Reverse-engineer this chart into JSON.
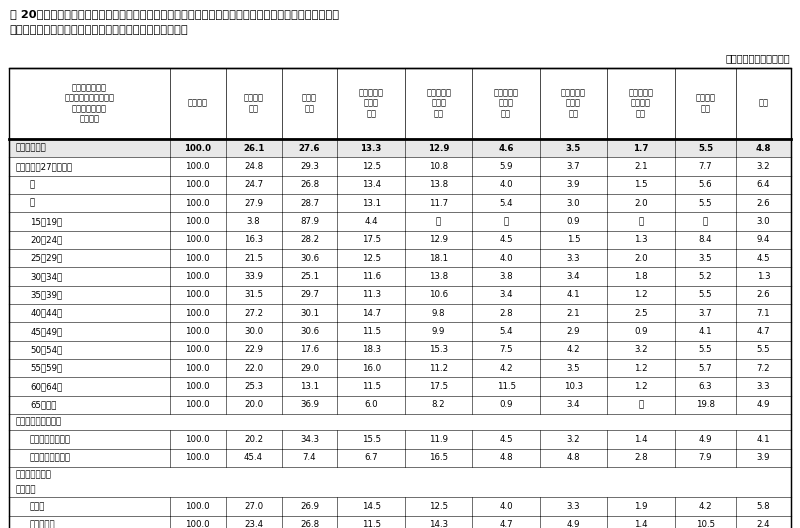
{
  "title_line1": "表 20　性・年齢階級・転職活動期間の有無・現在の勤め先の就業形態、直前の勤め先を離職してから現",
  "title_line2": "　　　在の勤め先に就職するまでの期間階級別転職者割合",
  "unit_label": "（単位：％）　令和２年",
  "col_headers": [
    "性・年齢階級・\n転職活動期間の有無・\n現在の勤め先の\n就業形態",
    "転職者計",
    "離職期間\nなし",
    "１か月\n未満",
    "１か月以上\n２か月\n未満",
    "２か月以上\n４か月\n未満",
    "４か月以上\n６か月\n未満",
    "６か月以上\n８か月\n未満",
    "８か月以上\n１０か月\n未満",
    "１０か月\n以上",
    "不明"
  ],
  "rows": [
    {
      "label": "総　　　　数",
      "bold": true,
      "indent": 0,
      "values": [
        "100.0",
        "26.1",
        "27.6",
        "13.3",
        "12.9",
        "4.6",
        "3.5",
        "1.7",
        "5.5",
        "4.8"
      ]
    },
    {
      "label": "前回（平成27年）総数",
      "bold": false,
      "indent": 0,
      "values": [
        "100.0",
        "24.8",
        "29.3",
        "12.5",
        "10.8",
        "5.9",
        "3.7",
        "2.1",
        "7.7",
        "3.2"
      ]
    },
    {
      "label": "男",
      "bold": false,
      "indent": 1,
      "values": [
        "100.0",
        "24.7",
        "26.8",
        "13.4",
        "13.8",
        "4.0",
        "3.9",
        "1.5",
        "5.6",
        "6.4"
      ]
    },
    {
      "label": "女",
      "bold": false,
      "indent": 1,
      "values": [
        "100.0",
        "27.9",
        "28.7",
        "13.1",
        "11.7",
        "5.4",
        "3.0",
        "2.0",
        "5.5",
        "2.6"
      ]
    },
    {
      "label": "15～19歳",
      "bold": false,
      "indent": 1,
      "values": [
        "100.0",
        "3.8",
        "87.9",
        "4.4",
        "－",
        "－",
        "0.9",
        "－",
        "－",
        "3.0"
      ]
    },
    {
      "label": "20～24歳",
      "bold": false,
      "indent": 1,
      "values": [
        "100.0",
        "16.3",
        "28.2",
        "17.5",
        "12.9",
        "4.5",
        "1.5",
        "1.3",
        "8.4",
        "9.4"
      ]
    },
    {
      "label": "25～29歳",
      "bold": false,
      "indent": 1,
      "values": [
        "100.0",
        "21.5",
        "30.6",
        "12.5",
        "18.1",
        "4.0",
        "3.3",
        "2.0",
        "3.5",
        "4.5"
      ]
    },
    {
      "label": "30～34歳",
      "bold": false,
      "indent": 1,
      "values": [
        "100.0",
        "33.9",
        "25.1",
        "11.6",
        "13.8",
        "3.8",
        "3.4",
        "1.8",
        "5.2",
        "1.3"
      ]
    },
    {
      "label": "35～39歳",
      "bold": false,
      "indent": 1,
      "values": [
        "100.0",
        "31.5",
        "29.7",
        "11.3",
        "10.6",
        "3.4",
        "4.1",
        "1.2",
        "5.5",
        "2.6"
      ]
    },
    {
      "label": "40～44歳",
      "bold": false,
      "indent": 1,
      "values": [
        "100.0",
        "27.2",
        "30.1",
        "14.7",
        "9.8",
        "2.8",
        "2.1",
        "2.5",
        "3.7",
        "7.1"
      ]
    },
    {
      "label": "45～49歳",
      "bold": false,
      "indent": 1,
      "values": [
        "100.0",
        "30.0",
        "30.6",
        "11.5",
        "9.9",
        "5.4",
        "2.9",
        "0.9",
        "4.1",
        "4.7"
      ]
    },
    {
      "label": "50～54歳",
      "bold": false,
      "indent": 1,
      "values": [
        "100.0",
        "22.9",
        "17.6",
        "18.3",
        "15.3",
        "7.5",
        "4.2",
        "3.2",
        "5.5",
        "5.5"
      ]
    },
    {
      "label": "55～59歳",
      "bold": false,
      "indent": 1,
      "values": [
        "100.0",
        "22.0",
        "29.0",
        "16.0",
        "11.2",
        "4.2",
        "3.5",
        "1.2",
        "5.7",
        "7.2"
      ]
    },
    {
      "label": "60～64歳",
      "bold": false,
      "indent": 1,
      "values": [
        "100.0",
        "25.3",
        "13.1",
        "11.5",
        "17.5",
        "11.5",
        "10.3",
        "1.2",
        "6.3",
        "3.3"
      ]
    },
    {
      "label": "65歳以上",
      "bold": false,
      "indent": 1,
      "values": [
        "100.0",
        "20.0",
        "36.9",
        "6.0",
        "8.2",
        "0.9",
        "3.4",
        "－",
        "19.8",
        "4.9"
      ]
    },
    {
      "label": "転職活動期間の有無",
      "bold": true,
      "indent": 0,
      "values": null,
      "section": true
    },
    {
      "label": "転職活動期間あり",
      "bold": false,
      "indent": 1,
      "values": [
        "100.0",
        "20.2",
        "34.3",
        "15.5",
        "11.9",
        "4.5",
        "3.2",
        "1.4",
        "4.9",
        "4.1"
      ]
    },
    {
      "label": "転職活動期間なし",
      "bold": false,
      "indent": 1,
      "values": [
        "100.0",
        "45.4",
        "7.4",
        "6.7",
        "16.5",
        "4.8",
        "4.8",
        "2.8",
        "7.9",
        "3.9"
      ]
    },
    {
      "label": "現在の勤め先の\n就業形態",
      "bold": true,
      "indent": 0,
      "values": null,
      "section": true
    },
    {
      "label": "正社員",
      "bold": false,
      "indent": 1,
      "values": [
        "100.0",
        "27.0",
        "26.9",
        "14.5",
        "12.5",
        "4.0",
        "3.3",
        "1.9",
        "4.2",
        "5.8"
      ]
    },
    {
      "label": "正社員以外",
      "bold": false,
      "indent": 1,
      "values": [
        "100.0",
        "23.4",
        "26.8",
        "11.5",
        "14.3",
        "4.7",
        "4.9",
        "1.4",
        "10.5",
        "2.4"
      ]
    }
  ]
}
